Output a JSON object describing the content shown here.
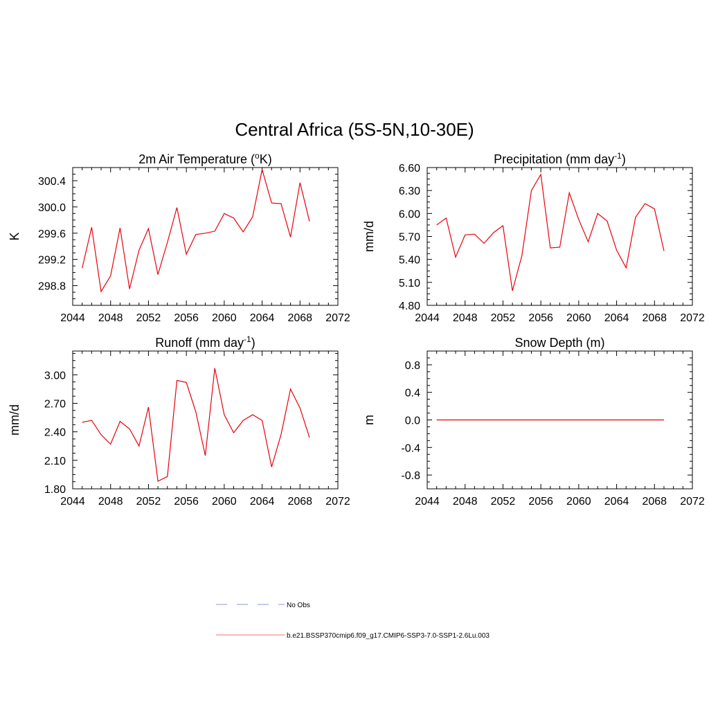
{
  "figure": {
    "title": "Central Africa (5S-5N,10-30E)"
  },
  "chart_data": [
    {
      "type": "line",
      "title": "2m Air Temperature (°K)",
      "title_parts": {
        "before": "2m Air Temperature (",
        "sup": "o",
        "after": "K)"
      },
      "ylabel": "K",
      "xlim": [
        2044,
        2072
      ],
      "ylim": [
        298.5,
        300.6
      ],
      "xticks": [
        2044,
        2048,
        2052,
        2056,
        2060,
        2064,
        2068,
        2072
      ],
      "xtick_labels": [
        "2044",
        "2048",
        "2052",
        "2056",
        "2060",
        "2064",
        "2068",
        "2072"
      ],
      "yticks": [
        298.8,
        299.2,
        299.6,
        300.0,
        300.4
      ],
      "ytick_labels": [
        "298.8",
        "299.2",
        "299.6",
        "300.0",
        "300.4"
      ],
      "series": [
        {
          "x": [
            2045,
            2046,
            2047,
            2048,
            2049,
            2050,
            2051,
            2052,
            2053,
            2054,
            2055,
            2056,
            2057,
            2058,
            2059,
            2060,
            2061,
            2062,
            2063,
            2064,
            2065,
            2066,
            2067,
            2068,
            2069
          ],
          "values": [
            299.07,
            299.69,
            298.71,
            298.95,
            299.68,
            298.75,
            299.34,
            299.67,
            298.97,
            299.46,
            299.99,
            299.28,
            299.58,
            299.6,
            299.63,
            299.9,
            299.83,
            299.62,
            299.85,
            300.57,
            300.06,
            300.05,
            299.54,
            300.37,
            299.78
          ],
          "color": "#e8000b"
        }
      ]
    },
    {
      "type": "line",
      "title": "Precipitation (mm day-1)",
      "title_parts": {
        "before": "Precipitation (mm day",
        "sup": "-1",
        "after": ")"
      },
      "ylabel": "mm/d",
      "xlim": [
        2044,
        2072
      ],
      "ylim": [
        4.8,
        6.6
      ],
      "xticks": [
        2044,
        2048,
        2052,
        2056,
        2060,
        2064,
        2068,
        2072
      ],
      "xtick_labels": [
        "2044",
        "2048",
        "2052",
        "2056",
        "2060",
        "2064",
        "2068",
        "2072"
      ],
      "yticks": [
        4.8,
        5.1,
        5.4,
        5.7,
        6.0,
        6.3,
        6.6
      ],
      "ytick_labels": [
        "4.80",
        "5.10",
        "5.40",
        "5.70",
        "6.00",
        "6.30",
        "6.60"
      ],
      "series": [
        {
          "x": [
            2045,
            2046,
            2047,
            2048,
            2049,
            2050,
            2051,
            2052,
            2053,
            2054,
            2055,
            2056,
            2057,
            2058,
            2059,
            2060,
            2061,
            2062,
            2063,
            2064,
            2065,
            2066,
            2067,
            2068,
            2069
          ],
          "values": [
            5.85,
            5.94,
            5.43,
            5.72,
            5.73,
            5.61,
            5.75,
            5.84,
            4.99,
            5.45,
            6.3,
            6.51,
            5.55,
            5.56,
            6.27,
            5.92,
            5.63,
            6.0,
            5.9,
            5.52,
            5.29,
            5.95,
            6.13,
            6.06,
            5.51
          ],
          "color": "#e8000b"
        }
      ]
    },
    {
      "type": "line",
      "title": "Runoff (mm day-1)",
      "title_parts": {
        "before": "Runoff (mm day",
        "sup": "-1",
        "after": ")"
      },
      "ylabel": "mm/d",
      "xlim": [
        2044,
        2072
      ],
      "ylim": [
        1.8,
        3.25
      ],
      "xticks": [
        2044,
        2048,
        2052,
        2056,
        2060,
        2064,
        2068,
        2072
      ],
      "xtick_labels": [
        "2044",
        "2048",
        "2052",
        "2056",
        "2060",
        "2064",
        "2068",
        "2072"
      ],
      "yticks": [
        1.8,
        2.1,
        2.4,
        2.7,
        3.0
      ],
      "ytick_labels": [
        "1.80",
        "2.10",
        "2.40",
        "2.70",
        "3.00"
      ],
      "series": [
        {
          "x": [
            2045,
            2046,
            2047,
            2048,
            2049,
            2050,
            2051,
            2052,
            2053,
            2054,
            2055,
            2056,
            2057,
            2058,
            2059,
            2060,
            2061,
            2062,
            2063,
            2064,
            2065,
            2066,
            2067,
            2068,
            2069
          ],
          "values": [
            2.5,
            2.52,
            2.37,
            2.27,
            2.51,
            2.43,
            2.25,
            2.66,
            1.88,
            1.93,
            2.94,
            2.92,
            2.61,
            2.15,
            3.07,
            2.58,
            2.39,
            2.52,
            2.58,
            2.52,
            2.03,
            2.37,
            2.85,
            2.65,
            2.34
          ],
          "color": "#e8000b"
        }
      ]
    },
    {
      "type": "line",
      "title": "Snow Depth (m)",
      "title_parts": {
        "before": "Snow Depth (m)",
        "sup": "",
        "after": ""
      },
      "ylabel": "m",
      "xlim": [
        2044,
        2072
      ],
      "ylim": [
        -1.0,
        1.0
      ],
      "xticks": [
        2044,
        2048,
        2052,
        2056,
        2060,
        2064,
        2068,
        2072
      ],
      "xtick_labels": [
        "2044",
        "2048",
        "2052",
        "2056",
        "2060",
        "2064",
        "2068",
        "2072"
      ],
      "yticks": [
        -0.8,
        -0.4,
        0.0,
        0.4,
        0.8
      ],
      "ytick_labels": [
        "-0.8",
        "-0.4",
        "0.0",
        "0.4",
        "0.8"
      ],
      "series": [
        {
          "x": [
            2045,
            2069
          ],
          "values": [
            0.0,
            0.0
          ],
          "color": "#e8000b"
        }
      ]
    }
  ],
  "legend": {
    "items": [
      {
        "label": "No Obs",
        "color": "#a5a9e0",
        "dash": true
      },
      {
        "label": "b.e21.BSSP370cmip6.f09_g17.CMIP6-SSP3-7.0-SSP1-2.6Lu.003",
        "color": "#f08c8c",
        "dash": false
      }
    ]
  }
}
